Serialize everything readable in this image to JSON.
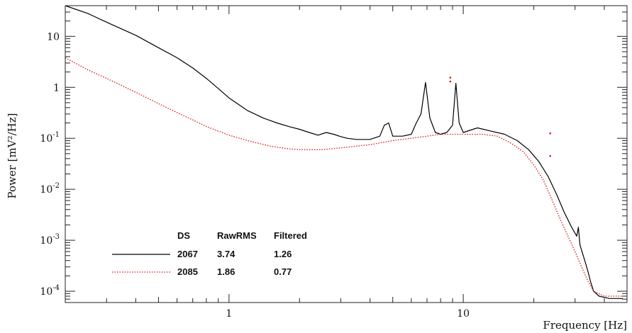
{
  "chart_data": {
    "type": "line",
    "title": "",
    "xlabel": "Frequency [Hz]",
    "ylabel": "Power [mV²/Hz]",
    "x_scale": "log",
    "y_scale": "log",
    "xlim": [
      0.2,
      50
    ],
    "ylim": [
      6e-05,
      40
    ],
    "grid": false,
    "x_ticks": [
      {
        "value": 1,
        "label": "1"
      },
      {
        "value": 10,
        "label": "10"
      }
    ],
    "y_ticks": [
      {
        "value": 10,
        "base": "10",
        "exp": ""
      },
      {
        "value": 1,
        "base": "1",
        "exp": ""
      },
      {
        "value": 0.1,
        "base": "10",
        "exp": "-1"
      },
      {
        "value": 0.01,
        "base": "10",
        "exp": "-2"
      },
      {
        "value": 0.001,
        "base": "10",
        "exp": "-3"
      },
      {
        "value": 0.0001,
        "base": "10",
        "exp": "-4"
      }
    ],
    "legend": {
      "placement": "bottom-left",
      "headers": [
        "DS",
        "RawRMS",
        "Filtered"
      ],
      "rows": [
        {
          "ds": "2067",
          "rawrms": "3.74",
          "filtered": "1.26",
          "color": "#000000",
          "style": "solid"
        },
        {
          "ds": "2085",
          "rawrms": "1.86",
          "filtered": "0.77",
          "color": "#e01010",
          "style": "dotted"
        }
      ]
    },
    "series": [
      {
        "color": "#000000",
        "style": "solid",
        "points": [
          [
            0.2,
            40
          ],
          [
            0.25,
            28
          ],
          [
            0.3,
            19
          ],
          [
            0.4,
            10.5
          ],
          [
            0.5,
            6
          ],
          [
            0.6,
            3.8
          ],
          [
            0.7,
            2.4
          ],
          [
            0.8,
            1.5
          ],
          [
            0.9,
            0.95
          ],
          [
            1.0,
            0.62
          ],
          [
            1.2,
            0.35
          ],
          [
            1.4,
            0.25
          ],
          [
            1.6,
            0.2
          ],
          [
            1.8,
            0.17
          ],
          [
            2.0,
            0.15
          ],
          [
            2.2,
            0.13
          ],
          [
            2.4,
            0.115
          ],
          [
            2.6,
            0.13
          ],
          [
            2.8,
            0.12
          ],
          [
            3.0,
            0.108
          ],
          [
            3.2,
            0.1
          ],
          [
            3.5,
            0.095
          ],
          [
            4.0,
            0.095
          ],
          [
            4.4,
            0.11
          ],
          [
            4.6,
            0.18
          ],
          [
            4.8,
            0.2
          ],
          [
            5.0,
            0.11
          ],
          [
            5.5,
            0.11
          ],
          [
            6.0,
            0.12
          ],
          [
            6.3,
            0.2
          ],
          [
            6.6,
            0.3
          ],
          [
            6.9,
            1.25
          ],
          [
            7.2,
            0.25
          ],
          [
            7.6,
            0.13
          ],
          [
            8.0,
            0.12
          ],
          [
            8.5,
            0.13
          ],
          [
            9.0,
            0.18
          ],
          [
            9.3,
            1.2
          ],
          [
            9.6,
            0.2
          ],
          [
            10.0,
            0.13
          ],
          [
            11.0,
            0.15
          ],
          [
            11.5,
            0.16
          ],
          [
            13.0,
            0.14
          ],
          [
            15.0,
            0.12
          ],
          [
            17.0,
            0.09
          ],
          [
            19.0,
            0.06
          ],
          [
            21.0,
            0.035
          ],
          [
            23.0,
            0.018
          ],
          [
            25.0,
            0.008
          ],
          [
            27.0,
            0.0035
          ],
          [
            29.0,
            0.0018
          ],
          [
            30.5,
            0.0012
          ],
          [
            31.0,
            0.0018
          ],
          [
            31.5,
            0.0008
          ],
          [
            33.0,
            0.0004
          ],
          [
            34.0,
            0.00025
          ],
          [
            35.0,
            0.00015
          ],
          [
            36.0,
            0.0001
          ],
          [
            38.0,
            8e-05
          ],
          [
            42.0,
            7.2e-05
          ],
          [
            48.0,
            7.2e-05
          ]
        ]
      },
      {
        "color": "#e01010",
        "style": "dotted",
        "points": [
          [
            0.2,
            3.8
          ],
          [
            0.25,
            2.2
          ],
          [
            0.3,
            1.5
          ],
          [
            0.4,
            0.8
          ],
          [
            0.5,
            0.48
          ],
          [
            0.6,
            0.32
          ],
          [
            0.7,
            0.23
          ],
          [
            0.8,
            0.17
          ],
          [
            1.0,
            0.115
          ],
          [
            1.2,
            0.09
          ],
          [
            1.5,
            0.07
          ],
          [
            1.8,
            0.062
          ],
          [
            2.0,
            0.06
          ],
          [
            2.5,
            0.06
          ],
          [
            3.0,
            0.065
          ],
          [
            4.0,
            0.075
          ],
          [
            5.0,
            0.09
          ],
          [
            6.0,
            0.1
          ],
          [
            7.0,
            0.11
          ],
          [
            8.0,
            0.12
          ],
          [
            10.0,
            0.12
          ],
          [
            12.0,
            0.12
          ],
          [
            14.0,
            0.11
          ],
          [
            16.0,
            0.08
          ],
          [
            18.0,
            0.055
          ],
          [
            20.0,
            0.03
          ],
          [
            22.0,
            0.015
          ],
          [
            24.0,
            0.006
          ],
          [
            26.0,
            0.0025
          ],
          [
            28.0,
            0.0012
          ],
          [
            30.0,
            0.0006
          ],
          [
            32.0,
            0.0003
          ],
          [
            34.0,
            0.00016
          ],
          [
            36.0,
            0.0001
          ],
          [
            40.0,
            8e-05
          ],
          [
            48.0,
            8e-05
          ]
        ]
      }
    ],
    "stray_points": [
      {
        "x": 8.8,
        "y": 1.55,
        "color": "#e01010"
      },
      {
        "x": 8.8,
        "y": 1.3,
        "color": "#e01010"
      },
      {
        "x": 23.5,
        "y": 0.125,
        "color": "#e01010"
      },
      {
        "x": 23.5,
        "y": 0.045,
        "color": "#e01010"
      }
    ]
  }
}
